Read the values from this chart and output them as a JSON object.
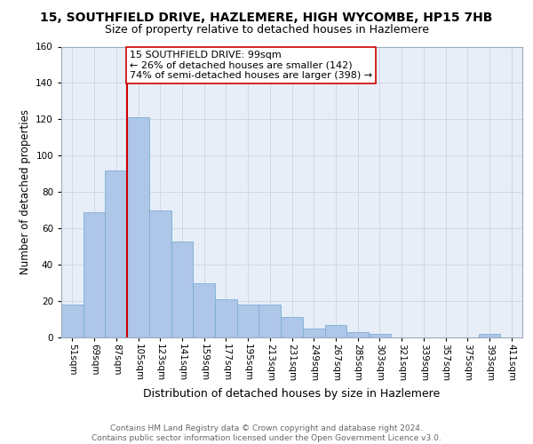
{
  "title": "15, SOUTHFIELD DRIVE, HAZLEMERE, HIGH WYCOMBE, HP15 7HB",
  "subtitle": "Size of property relative to detached houses in Hazlemere",
  "xlabel": "Distribution of detached houses by size in Hazlemere",
  "ylabel": "Number of detached properties",
  "categories": [
    "51sqm",
    "69sqm",
    "87sqm",
    "105sqm",
    "123sqm",
    "141sqm",
    "159sqm",
    "177sqm",
    "195sqm",
    "213sqm",
    "231sqm",
    "249sqm",
    "267sqm",
    "285sqm",
    "303sqm",
    "321sqm",
    "339sqm",
    "357sqm",
    "375sqm",
    "393sqm",
    "411sqm"
  ],
  "values": [
    18,
    69,
    92,
    121,
    70,
    53,
    30,
    21,
    18,
    18,
    11,
    5,
    7,
    3,
    2,
    0,
    0,
    0,
    0,
    2,
    0
  ],
  "bar_color": "#aec6e8",
  "bar_edge_color": "#7aaed4",
  "vline_color": "#cc0000",
  "annotation_text": "15 SOUTHFIELD DRIVE: 99sqm\n← 26% of detached houses are smaller (142)\n74% of semi-detached houses are larger (398) →",
  "annotation_box_color": "#ffffff",
  "annotation_box_edge_color": "#cc0000",
  "ylim": [
    0,
    160
  ],
  "yticks": [
    0,
    20,
    40,
    60,
    80,
    100,
    120,
    140,
    160
  ],
  "grid_color": "#c8d4e4",
  "bg_color": "#e8eef8",
  "footer_text": "Contains HM Land Registry data © Crown copyright and database right 2024.\nContains public sector information licensed under the Open Government Licence v3.0.",
  "title_fontsize": 10,
  "subtitle_fontsize": 9,
  "xlabel_fontsize": 9,
  "ylabel_fontsize": 8.5,
  "tick_fontsize": 7.5,
  "annotation_fontsize": 8,
  "footer_fontsize": 6.5
}
